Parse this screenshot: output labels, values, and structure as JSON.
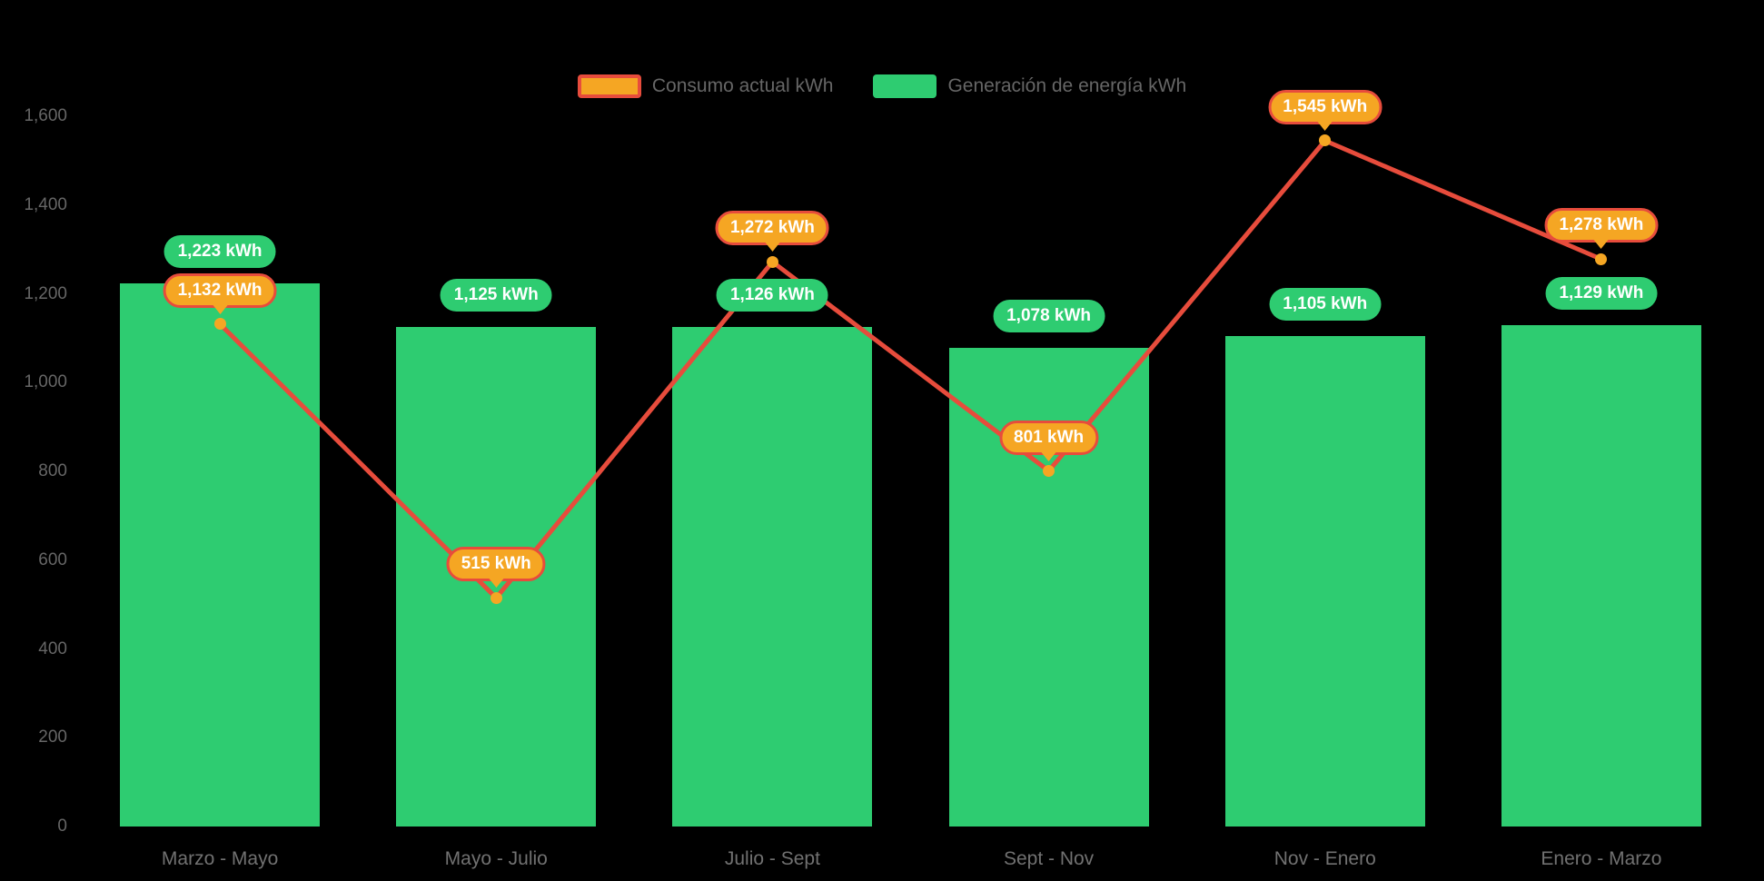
{
  "page": {
    "background": "#000000"
  },
  "chart_data": {
    "type": "bar+line",
    "title": "",
    "categories": [
      "Marzo - Mayo",
      "Mayo - Julio",
      "Julio - Sept",
      "Sept - Nov",
      "Nov - Enero",
      "Enero - Marzo"
    ],
    "series": [
      {
        "name": "Consumo actual kWh",
        "type": "line",
        "color": "#e74c3c",
        "marker_color": "#f5a623",
        "values": [
          1132,
          515,
          1272,
          801,
          1545,
          1278
        ],
        "labels": [
          "1,132 kWh",
          "515 kWh",
          "1,272 kWh",
          "801 kWh",
          "1,545 kWh",
          "1,278 kWh"
        ]
      },
      {
        "name": "Generación de energía kWh",
        "type": "bar",
        "color": "#2ecc71",
        "values": [
          1223,
          1125,
          1126,
          1078,
          1105,
          1129
        ],
        "labels": [
          "1,223 kWh",
          "1,125 kWh",
          "1,126 kWh",
          "1,078 kWh",
          "1,105 kWh",
          "1,129 kWh"
        ]
      }
    ],
    "ylim": [
      0,
      1600
    ],
    "yticks": [
      {
        "value": 0,
        "label": "0"
      },
      {
        "value": 200,
        "label": "200"
      },
      {
        "value": 400,
        "label": "400"
      },
      {
        "value": 600,
        "label": "600"
      },
      {
        "value": 800,
        "label": "800"
      },
      {
        "value": 1000,
        "label": "1,000"
      },
      {
        "value": 1200,
        "label": "1,200"
      },
      {
        "value": 1400,
        "label": "1,400"
      },
      {
        "value": 1600,
        "label": "1,600"
      }
    ],
    "grid": false,
    "legend_position": "top",
    "background": "#000000",
    "axis_text_color": "#666666",
    "value_label_text_color": "#ffffff"
  }
}
